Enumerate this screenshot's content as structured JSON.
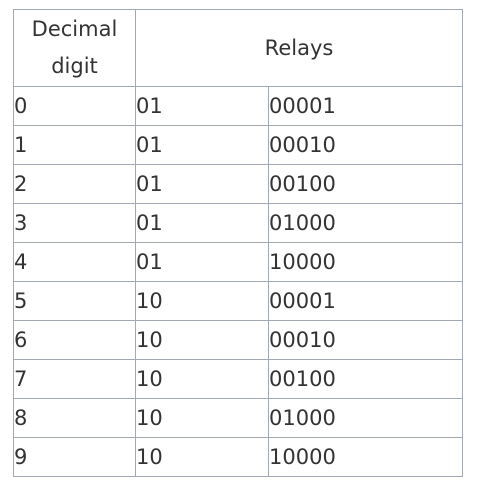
{
  "table": {
    "header": {
      "decimal_digit": "Decimal digit",
      "relays": "Relays"
    },
    "rows": [
      {
        "digit": "0",
        "group": "01",
        "code": "00001"
      },
      {
        "digit": "1",
        "group": "01",
        "code": "00010"
      },
      {
        "digit": "2",
        "group": "01",
        "code": "00100"
      },
      {
        "digit": "3",
        "group": "01",
        "code": "01000"
      },
      {
        "digit": "4",
        "group": "01",
        "code": "10000"
      },
      {
        "digit": "5",
        "group": "10",
        "code": "00001"
      },
      {
        "digit": "6",
        "group": "10",
        "code": "00010"
      },
      {
        "digit": "7",
        "group": "10",
        "code": "00100"
      },
      {
        "digit": "8",
        "group": "10",
        "code": "01000"
      },
      {
        "digit": "9",
        "group": "10",
        "code": "10000"
      }
    ]
  }
}
